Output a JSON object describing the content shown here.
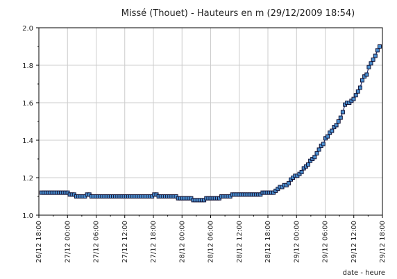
{
  "chart_data": {
    "type": "line",
    "title": "Missé (Thouet) - Hauteurs en m (29/12/2009 18:54)",
    "xlabel": "date - heure",
    "ylabel": "",
    "ylim": [
      1.0,
      2.0
    ],
    "y_ticks": [
      "1.0",
      "1.2",
      "1.4",
      "1.6",
      "1.8",
      "2.0"
    ],
    "x_ticks": [
      "26/12 18:00",
      "27/12 00:00",
      "27/12 06:00",
      "27/12 12:00",
      "27/12 18:00",
      "28/12 00:00",
      "28/12 06:00",
      "28/12 12:00",
      "28/12 18:00",
      "29/12 00:00",
      "29/12 06:00",
      "29/12 12:00",
      "29/12 18:00"
    ],
    "grid": true,
    "colors": {
      "line": "#1a2a6e",
      "marker_fill": "#4a8fd0",
      "marker_stroke": "#111133",
      "grid": "#cccccc"
    },
    "series": [
      {
        "values": [
          1.12,
          1.12,
          1.12,
          1.12,
          1.12,
          1.12,
          1.12,
          1.12,
          1.12,
          1.12,
          1.12,
          1.12,
          1.12,
          1.11,
          1.11,
          1.11,
          1.1,
          1.1,
          1.1,
          1.1,
          1.1,
          1.11,
          1.11,
          1.1,
          1.1,
          1.1,
          1.1,
          1.1,
          1.1,
          1.1,
          1.1,
          1.1,
          1.1,
          1.1,
          1.1,
          1.1,
          1.1,
          1.1,
          1.1,
          1.1,
          1.1,
          1.1,
          1.1,
          1.1,
          1.1,
          1.1,
          1.1,
          1.1,
          1.1,
          1.1,
          1.1,
          1.1,
          1.11,
          1.11,
          1.1,
          1.1,
          1.1,
          1.1,
          1.1,
          1.1,
          1.1,
          1.1,
          1.1,
          1.09,
          1.09,
          1.09,
          1.09,
          1.09,
          1.09,
          1.09,
          1.08,
          1.08,
          1.08,
          1.08,
          1.08,
          1.08,
          1.09,
          1.09,
          1.09,
          1.09,
          1.09,
          1.09,
          1.09,
          1.1,
          1.1,
          1.1,
          1.1,
          1.1,
          1.11,
          1.11,
          1.11,
          1.11,
          1.11,
          1.11,
          1.11,
          1.11,
          1.11,
          1.11,
          1.11,
          1.11,
          1.11,
          1.11,
          1.12,
          1.12,
          1.12,
          1.12,
          1.12,
          1.12,
          1.13,
          1.14,
          1.15,
          1.15,
          1.16,
          1.16,
          1.17,
          1.19,
          1.2,
          1.21,
          1.21,
          1.22,
          1.23,
          1.25,
          1.26,
          1.27,
          1.29,
          1.3,
          1.31,
          1.33,
          1.35,
          1.37,
          1.38,
          1.41,
          1.42,
          1.44,
          1.45,
          1.47,
          1.48,
          1.5,
          1.52,
          1.55,
          1.59,
          1.6,
          1.6,
          1.61,
          1.62,
          1.64,
          1.66,
          1.68,
          1.72,
          1.74,
          1.75,
          1.79,
          1.81,
          1.83,
          1.85,
          1.88,
          1.9
        ]
      }
    ]
  }
}
